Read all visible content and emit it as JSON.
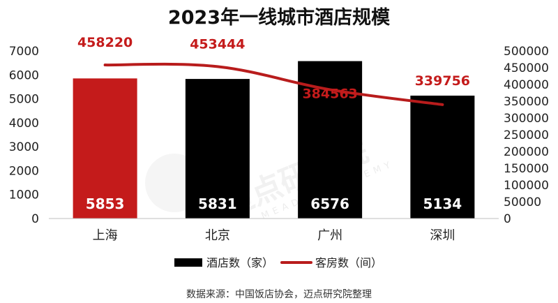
{
  "chart_data": {
    "type": "bar",
    "title": "2023年一线城市酒店规模",
    "categories": [
      "上海",
      "北京",
      "广州",
      "深圳"
    ],
    "series": [
      {
        "name": "酒店数（家）",
        "type": "bar",
        "axis": "left",
        "values": [
          5853,
          5831,
          6576,
          5134
        ],
        "colors": [
          "#c41b1b",
          "#000000",
          "#000000",
          "#000000"
        ]
      },
      {
        "name": "客房数（间）",
        "type": "line",
        "axis": "right",
        "values": [
          458220,
          453444,
          384563,
          339756
        ],
        "color": "#b81c1c"
      }
    ],
    "y_left": {
      "min": 0,
      "max": 7000,
      "step": 1000
    },
    "y_right": {
      "min": 0,
      "max": 500000,
      "step": 50000
    },
    "legend": "bottom",
    "source": "数据来源：中国饭店协会，迈点研究院整理"
  },
  "watermark": {
    "text": "迈点研究院",
    "sub": "MEADIN ACADEMY"
  }
}
